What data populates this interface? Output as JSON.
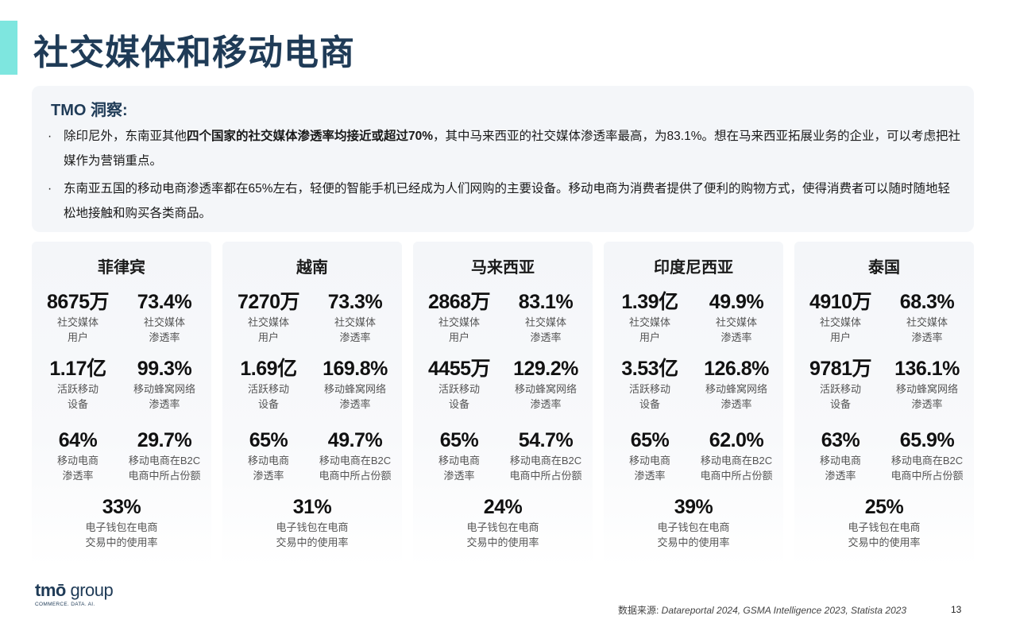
{
  "title": "社交媒体和移动电商",
  "insight": {
    "heading": "TMO 洞察:",
    "items": [
      {
        "pre": "除印尼外，东南亚其他",
        "bold": "四个国家的社交媒体渗透率均接近或超过70%",
        "post": "，其中马来西亚的社交媒体渗透率最高，为83.1%。想在马来西亚拓展业务的企业，可以考虑把社媒作为营销重点。"
      },
      {
        "pre": "东南亚五国的移动电商渗透率都在65%左右，轻便的智能手机已经成为人们网购的主要设备。移动电商为消费者提供了便利的购物方式，使得消费者可以随时随地轻松地接触和购买各类商品。",
        "bold": "",
        "post": ""
      }
    ]
  },
  "labels": {
    "social_users": "社交媒体\n用户",
    "social_pen": "社交媒体\n渗透率",
    "active_devices": "活跃移动\n设备",
    "cellular_pen": "移动蜂窝网络\n渗透率",
    "mcommerce_pen": "移动电商\n渗透率",
    "mcommerce_share": "移动电商在B2C\n电商中所占份额",
    "ewallet": "电子钱包在电商\n交易中的使用率"
  },
  "countries": [
    {
      "name": "菲律宾",
      "social_users": "8675万",
      "social_pen": "73.4%",
      "active_devices": "1.17亿",
      "cellular_pen": "99.3%",
      "mcommerce_pen": "64%",
      "mcommerce_share": "29.7%",
      "ewallet": "33%"
    },
    {
      "name": "越南",
      "social_users": "7270万",
      "social_pen": "73.3%",
      "active_devices": "1.69亿",
      "cellular_pen": "169.8%",
      "mcommerce_pen": "65%",
      "mcommerce_share": "49.7%",
      "ewallet": "31%"
    },
    {
      "name": "马来西亚",
      "social_users": "2868万",
      "social_pen": "83.1%",
      "active_devices": "4455万",
      "cellular_pen": "129.2%",
      "mcommerce_pen": "65%",
      "mcommerce_share": "54.7%",
      "ewallet": "24%"
    },
    {
      "name": "印度尼西亚",
      "social_users": "1.39亿",
      "social_pen": "49.9%",
      "active_devices": "3.53亿",
      "cellular_pen": "126.8%",
      "mcommerce_pen": "65%",
      "mcommerce_share": "62.0%",
      "ewallet": "39%"
    },
    {
      "name": "泰国",
      "social_users": "4910万",
      "social_pen": "68.3%",
      "active_devices": "9781万",
      "cellular_pen": "136.1%",
      "mcommerce_pen": "63%",
      "mcommerce_share": "65.9%",
      "ewallet": "25%"
    }
  ],
  "logo": {
    "brand": "tmō",
    "group": "group",
    "tagline": "COMMERCE. DATA. AI."
  },
  "source": {
    "label": "数据来源:",
    "text": " Datareportal 2024, GSMA Intelligence 2023, Statista 2023"
  },
  "page_number": "13",
  "colors": {
    "accent": "#7ee6df",
    "title": "#1f3b57",
    "panel": "#f4f6f9"
  }
}
